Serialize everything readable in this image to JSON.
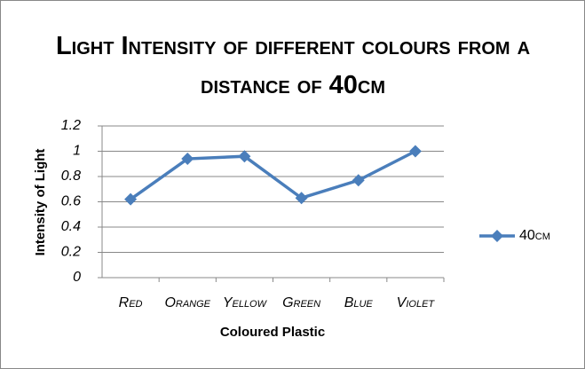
{
  "chart_data": {
    "type": "line",
    "title": "Light Intensity of different colours from a distance of 40cm",
    "x_label": "Coloured Plastic",
    "y_label": "Intensity of Light",
    "categories": [
      "Red",
      "Orange",
      "Yellow",
      "Green",
      "Blue",
      "Violet"
    ],
    "series": [
      {
        "name": "40cm",
        "color": "#4a7ebb",
        "values": [
          0.62,
          0.94,
          0.96,
          0.63,
          0.77,
          1
        ]
      }
    ],
    "ylim": [
      0,
      1.2
    ],
    "yticks": [
      0,
      0.2,
      0.4,
      0.6,
      0.8,
      1,
      1.2
    ],
    "grid": true,
    "legend": "right"
  }
}
